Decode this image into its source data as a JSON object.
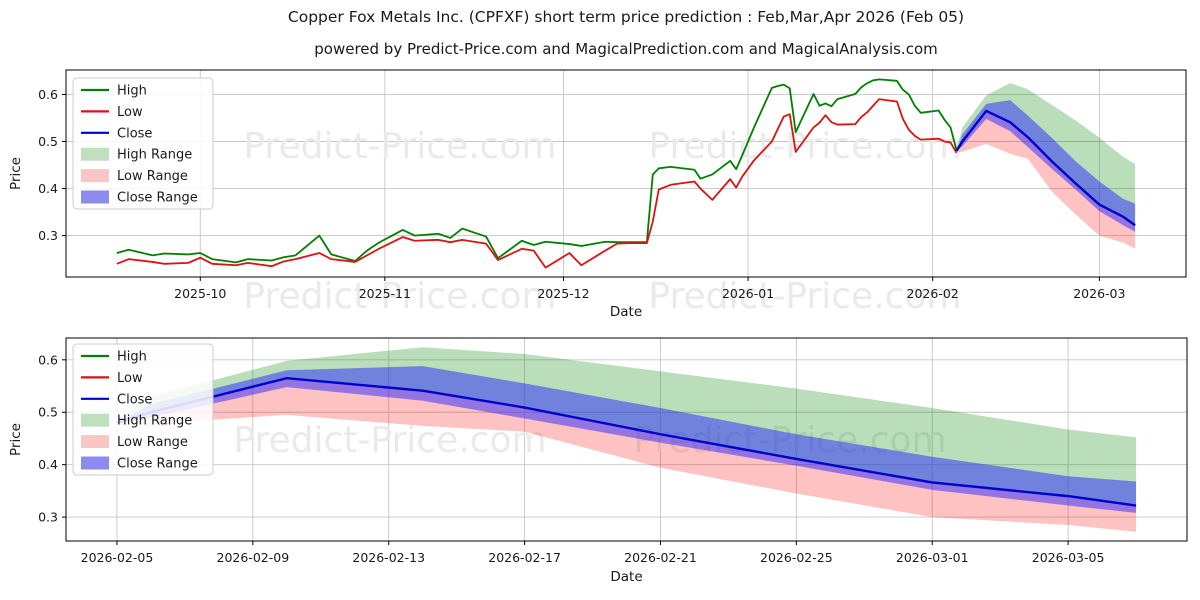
{
  "header": {
    "title": "Copper Fox Metals Inc. (CPFXF) short term price prediction : Feb,Mar,Apr 2026 (Feb 05)",
    "subtitle": "powered by Predict-Price.com and MagicalPrediction.com and MagicalAnalysis.com"
  },
  "watermark": {
    "text": "Predict-Price.com",
    "color": "#eaeaea"
  },
  "colors": {
    "high_line": "#008000",
    "low_line": "#dd1111",
    "close_line": "#0000cc",
    "high_band": "rgba(0,128,0,0.27)",
    "low_band": "rgba(255,0,0,0.24)",
    "close_band": "rgba(40,40,255,0.50)",
    "grid": "#c6c6c6",
    "frame": "#000000",
    "text": "#1a1a1a",
    "legend_border": "#cccccc"
  },
  "legend": {
    "items": [
      {
        "label": "High",
        "swatch": "line",
        "color": "#008000"
      },
      {
        "label": "Low",
        "swatch": "line",
        "color": "#dd1111"
      },
      {
        "label": "Close",
        "swatch": "line",
        "color": "#0000cc"
      },
      {
        "label": "High Range",
        "swatch": "patch",
        "color": "#bfdfbf"
      },
      {
        "label": "Low Range",
        "swatch": "patch",
        "color": "#f9c6c6"
      },
      {
        "label": "Close Range",
        "swatch": "patch",
        "color": "#8c8cf0"
      }
    ]
  },
  "chart_data": [
    {
      "type": "line",
      "name": "history-and-forecast-chart",
      "xlabel": "Date",
      "ylabel": "Price",
      "grid": true,
      "legend_position": "upper left",
      "y_ticks": [
        0.3,
        0.4,
        0.5,
        0.6
      ],
      "x_ticks": [
        {
          "date": "2025-10-01",
          "label": "2025-10"
        },
        {
          "date": "2025-11-01",
          "label": "2025-11"
        },
        {
          "date": "2025-12-01",
          "label": "2025-12"
        },
        {
          "date": "2026-01-01",
          "label": "2026-01"
        },
        {
          "date": "2026-02-01",
          "label": "2026-02"
        },
        {
          "date": "2026-03-01",
          "label": "2026-03"
        }
      ],
      "series": {
        "historical": {
          "dates": [
            "2025-09-17",
            "2025-09-19",
            "2025-09-23",
            "2025-09-25",
            "2025-09-29",
            "2025-10-01",
            "2025-10-03",
            "2025-10-07",
            "2025-10-09",
            "2025-10-13",
            "2025-10-15",
            "2025-10-17",
            "2025-10-21",
            "2025-10-23",
            "2025-10-27",
            "2025-10-29",
            "2025-10-31",
            "2025-11-04",
            "2025-11-06",
            "2025-11-10",
            "2025-11-12",
            "2025-11-14",
            "2025-11-18",
            "2025-11-20",
            "2025-11-24",
            "2025-11-26",
            "2025-11-28",
            "2025-12-02",
            "2025-12-04",
            "2025-12-08",
            "2025-12-10",
            "2025-12-12",
            "2025-12-15",
            "2025-12-16",
            "2025-12-17",
            "2025-12-19",
            "2025-12-23",
            "2025-12-24",
            "2025-12-26",
            "2025-12-29",
            "2025-12-30",
            "2025-12-31",
            "2026-01-02",
            "2026-01-05",
            "2026-01-06",
            "2026-01-07",
            "2026-01-08",
            "2026-01-09",
            "2026-01-12",
            "2026-01-13",
            "2026-01-14",
            "2026-01-15",
            "2026-01-16",
            "2026-01-19",
            "2026-01-20",
            "2026-01-21",
            "2026-01-22",
            "2026-01-23",
            "2026-01-26",
            "2026-01-27",
            "2026-01-28",
            "2026-01-29",
            "2026-01-30",
            "2026-02-02",
            "2026-02-03",
            "2026-02-04",
            "2026-02-05"
          ],
          "high": [
            0.263,
            0.27,
            0.258,
            0.262,
            0.26,
            0.263,
            0.25,
            0.243,
            0.25,
            0.247,
            0.254,
            0.258,
            0.3,
            0.26,
            0.246,
            0.268,
            0.285,
            0.312,
            0.3,
            0.304,
            0.295,
            0.315,
            0.298,
            0.252,
            0.289,
            0.28,
            0.287,
            0.282,
            0.278,
            0.287,
            0.286,
            0.286,
            0.286,
            0.43,
            0.443,
            0.446,
            0.44,
            0.421,
            0.43,
            0.459,
            0.441,
            0.47,
            0.53,
            0.614,
            0.618,
            0.621,
            0.613,
            0.52,
            0.601,
            0.576,
            0.581,
            0.575,
            0.59,
            0.601,
            0.615,
            0.624,
            0.63,
            0.632,
            0.629,
            0.61,
            0.6,
            0.576,
            0.561,
            0.566,
            0.546,
            0.53,
            0.482
          ],
          "low": [
            0.24,
            0.25,
            0.244,
            0.24,
            0.242,
            0.253,
            0.24,
            0.237,
            0.242,
            0.235,
            0.245,
            0.25,
            0.263,
            0.25,
            0.244,
            0.258,
            0.272,
            0.297,
            0.289,
            0.291,
            0.286,
            0.291,
            0.283,
            0.248,
            0.272,
            0.268,
            0.232,
            0.263,
            0.237,
            0.268,
            0.283,
            0.284,
            0.284,
            0.33,
            0.398,
            0.408,
            0.415,
            0.4,
            0.376,
            0.42,
            0.402,
            0.425,
            0.46,
            0.5,
            0.527,
            0.553,
            0.558,
            0.478,
            0.53,
            0.54,
            0.556,
            0.541,
            0.536,
            0.537,
            0.552,
            0.562,
            0.576,
            0.59,
            0.585,
            0.548,
            0.525,
            0.512,
            0.504,
            0.506,
            0.5,
            0.498,
            0.476
          ]
        },
        "forecast": {
          "dates": [
            "2026-02-05",
            "2026-02-06",
            "2026-02-10",
            "2026-02-14",
            "2026-02-17",
            "2026-02-21",
            "2026-02-25",
            "2026-03-01",
            "2026-03-05",
            "2026-03-07"
          ],
          "close": [
            0.48,
            0.5,
            0.565,
            0.541,
            0.509,
            0.458,
            0.411,
            0.366,
            0.34,
            0.322
          ],
          "close_upper": [
            0.48,
            0.515,
            0.58,
            0.588,
            0.555,
            0.508,
            0.458,
            0.415,
            0.378,
            0.368
          ],
          "close_lower": [
            0.48,
            0.49,
            0.548,
            0.522,
            0.488,
            0.442,
            0.398,
            0.352,
            0.322,
            0.308
          ],
          "high_upper": [
            0.483,
            0.53,
            0.598,
            0.624,
            0.611,
            0.578,
            0.545,
            0.508,
            0.467,
            0.452
          ],
          "low_lower": [
            0.477,
            0.478,
            0.495,
            0.474,
            0.463,
            0.394,
            0.345,
            0.3,
            0.285,
            0.272
          ]
        }
      }
    },
    {
      "type": "line",
      "name": "forecast-detail-chart",
      "xlabel": "Date",
      "ylabel": "Price",
      "grid": true,
      "legend_position": "upper left",
      "y_ticks": [
        0.3,
        0.4,
        0.5,
        0.6
      ],
      "x_ticks": [
        {
          "date": "2026-02-05",
          "label": "2026-02-05"
        },
        {
          "date": "2026-02-09",
          "label": "2026-02-09"
        },
        {
          "date": "2026-02-13",
          "label": "2026-02-13"
        },
        {
          "date": "2026-02-17",
          "label": "2026-02-17"
        },
        {
          "date": "2026-02-21",
          "label": "2026-02-21"
        },
        {
          "date": "2026-02-25",
          "label": "2026-02-25"
        },
        {
          "date": "2026-03-01",
          "label": "2026-03-01"
        },
        {
          "date": "2026-03-05",
          "label": "2026-03-05"
        }
      ],
      "series": {
        "forecast": {
          "dates": [
            "2026-02-05",
            "2026-02-06",
            "2026-02-10",
            "2026-02-14",
            "2026-02-17",
            "2026-02-21",
            "2026-02-25",
            "2026-03-01",
            "2026-03-05",
            "2026-03-07"
          ],
          "close": [
            0.48,
            0.5,
            0.565,
            0.541,
            0.509,
            0.458,
            0.411,
            0.366,
            0.34,
            0.322
          ],
          "close_upper": [
            0.48,
            0.515,
            0.58,
            0.588,
            0.555,
            0.508,
            0.458,
            0.415,
            0.378,
            0.368
          ],
          "close_lower": [
            0.48,
            0.49,
            0.548,
            0.522,
            0.488,
            0.442,
            0.398,
            0.352,
            0.322,
            0.308
          ],
          "high_upper": [
            0.483,
            0.53,
            0.598,
            0.624,
            0.611,
            0.578,
            0.545,
            0.508,
            0.467,
            0.452
          ],
          "low_lower": [
            0.477,
            0.478,
            0.495,
            0.474,
            0.463,
            0.394,
            0.345,
            0.3,
            0.285,
            0.272
          ]
        }
      }
    }
  ]
}
